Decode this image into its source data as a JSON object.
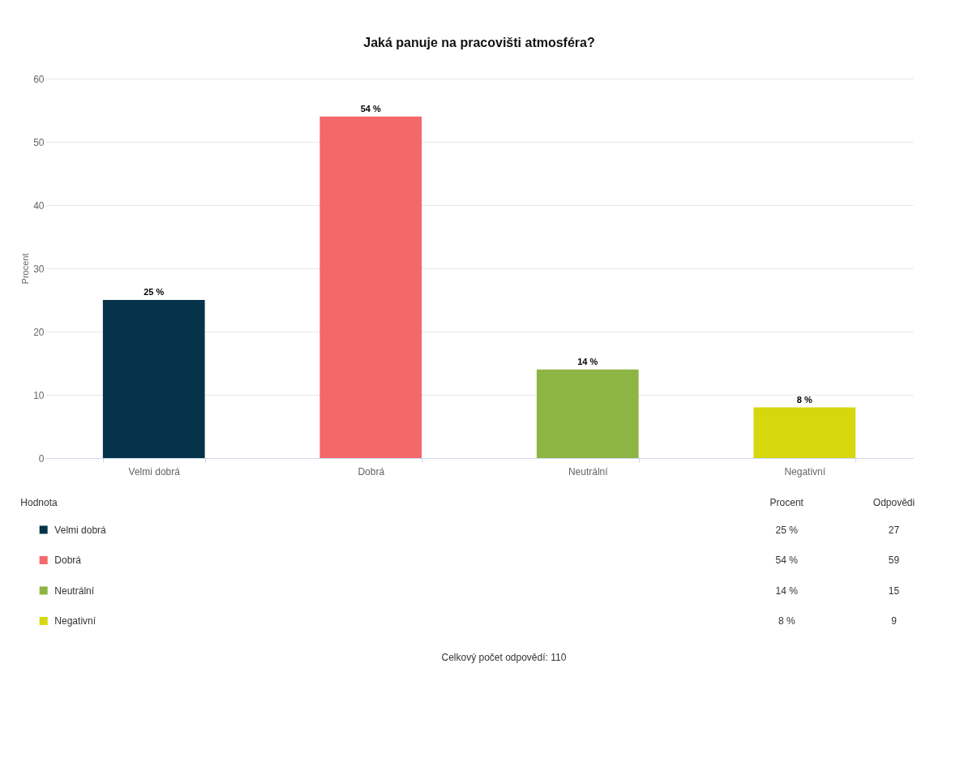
{
  "chart_data": [
    {
      "type": "bar",
      "title": "Jaká panuje na pracovišti atmosféra?",
      "ylabel": "Procent",
      "categories": [
        "Velmi dobrá",
        "Dobrá",
        "Neutrální",
        "Negativní"
      ],
      "values": [
        25,
        54,
        14,
        8
      ],
      "value_labels": [
        "25 %",
        "54 %",
        "14 %",
        "8 %"
      ],
      "colors": [
        "#05334a",
        "#f4676b",
        "#8db543",
        "#d6d70d"
      ],
      "ylim": [
        0,
        60
      ],
      "yticks": [
        0,
        10,
        20,
        30,
        40,
        50,
        60
      ],
      "grid": "y"
    },
    {
      "type": "other",
      "xlabel": "Hodnota",
      "data_labels": true,
      "categories": [
        "Velmi dobrá",
        "Dobrá",
        "Neutrální",
        "Negativní"
      ],
      "colors": [
        "#05334a",
        "#f4676b",
        "#8db543",
        "#d6d70d"
      ],
      "series": [
        {
          "name": "Odpovědi",
          "values": [
            27,
            59,
            15,
            9
          ]
        }
      ],
      "annotations": [
        "Celkový počet odpovědí: 110"
      ]
    }
  ]
}
